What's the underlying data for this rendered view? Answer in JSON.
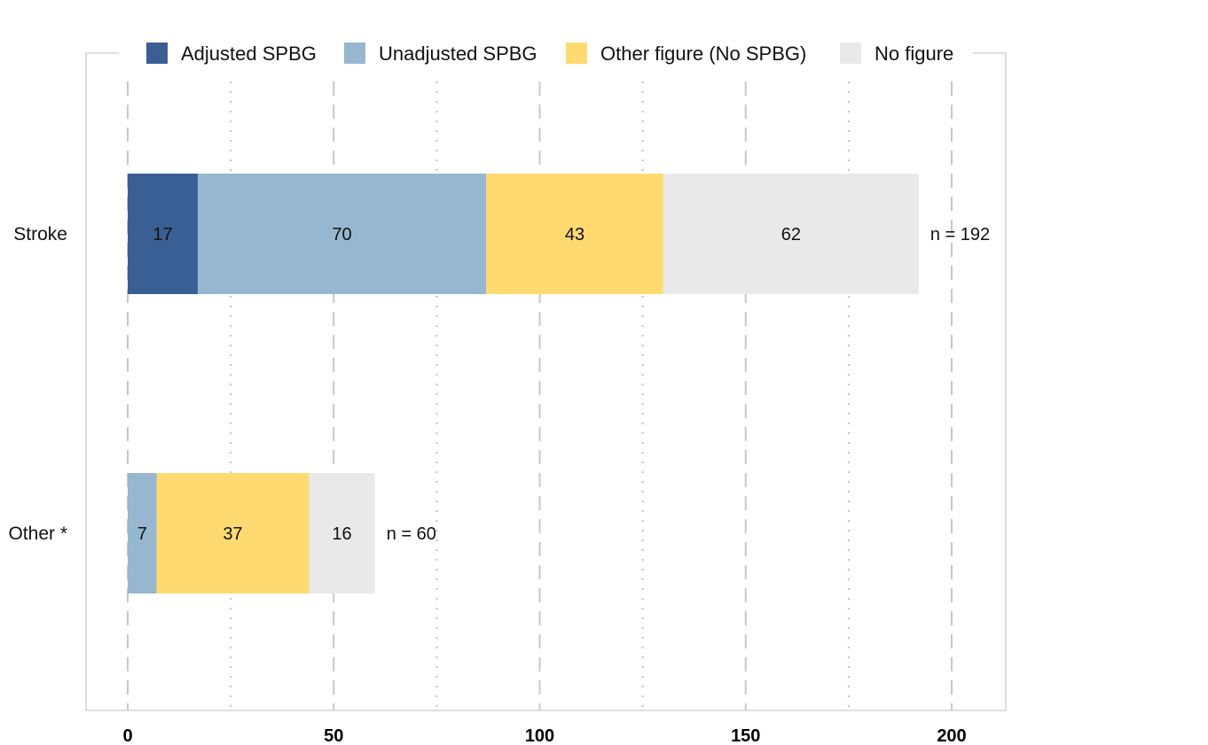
{
  "chart_data": {
    "type": "bar",
    "orientation": "horizontal",
    "stacked": true,
    "categories": [
      "Stroke",
      "Other *"
    ],
    "series": [
      {
        "name": "Adjusted SPBG",
        "color": "#3A5F94",
        "values": [
          17,
          0
        ]
      },
      {
        "name": "Unadjusted SPBG",
        "color": "#96B7CF",
        "values": [
          70,
          7
        ]
      },
      {
        "name": "Other figure (No SPBG)",
        "color": "#FEDA71",
        "values": [
          43,
          37
        ]
      },
      {
        "name": "No figure",
        "color": "#E9E9E9",
        "values": [
          62,
          16
        ]
      }
    ],
    "totals": [
      "n = 192",
      "n = 60"
    ],
    "xlim": [
      0,
      200
    ],
    "xticks": [
      "0",
      "50",
      "100",
      "150",
      "200"
    ],
    "grid": true,
    "legend": "top",
    "title": "",
    "xlabel": "",
    "ylabel": ""
  }
}
